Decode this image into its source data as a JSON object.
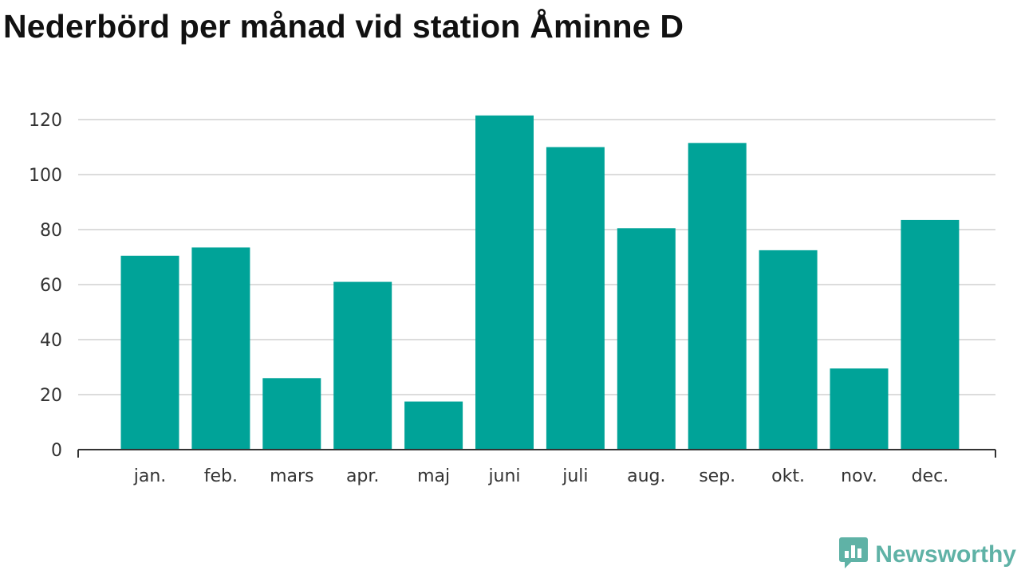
{
  "title": "Nederbörd per månad vid station Åminne D",
  "brand": {
    "name": "Newsworthy",
    "icon": "newsworthy-logo-icon",
    "color": "#5fb2a6"
  },
  "chart_data": {
    "type": "bar",
    "title": "Nederbörd per månad vid station Åminne D",
    "xlabel": "",
    "ylabel": "",
    "ylim": [
      0,
      120
    ],
    "yticks": [
      0,
      20,
      40,
      60,
      80,
      100,
      120
    ],
    "grid": true,
    "legend": "none",
    "bar_color": "#00a398",
    "categories": [
      "jan.",
      "feb.",
      "mars",
      "apr.",
      "maj",
      "juni",
      "juli",
      "aug.",
      "sep.",
      "okt.",
      "nov.",
      "dec."
    ],
    "values": [
      70.5,
      73.5,
      26,
      61,
      17.5,
      121.5,
      110,
      80.5,
      111.5,
      72.5,
      29.5,
      83.5
    ]
  }
}
